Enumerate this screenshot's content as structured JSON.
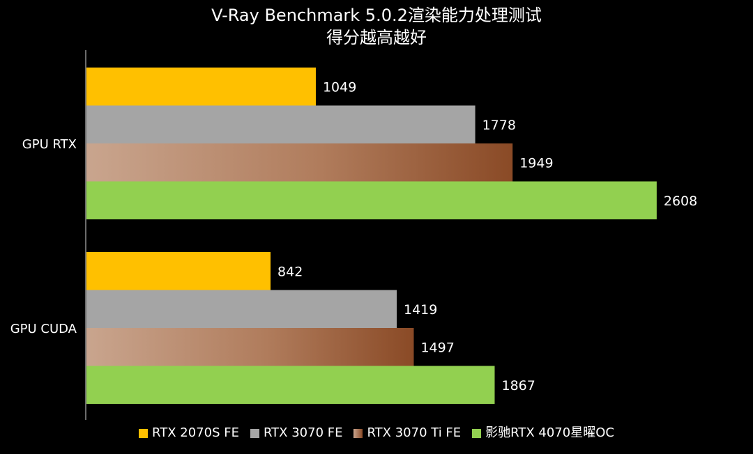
{
  "chart_data": {
    "type": "bar",
    "orientation": "horizontal",
    "title": "V-Ray Benchmark 5.0.2渲染能力处理测试",
    "subtitle": "得分越高越好",
    "categories": [
      "GPU RTX",
      "GPU CUDA"
    ],
    "series": [
      {
        "name": "RTX 2070S FE",
        "values": [
          1049,
          842
        ],
        "color": "#FFC000"
      },
      {
        "name": "RTX 3070 FE",
        "values": [
          1778,
          1419
        ],
        "color": "#A5A5A5"
      },
      {
        "name": "RTX 3070 Ti FE",
        "values": [
          1949,
          1497
        ],
        "color": "#A0603A"
      },
      {
        "name": "影驰RTX 4070星曜OC",
        "values": [
          2608,
          1867
        ],
        "color": "#92D050"
      }
    ],
    "xlim": [
      0,
      3000
    ],
    "grid": false,
    "legend_position": "bottom"
  }
}
